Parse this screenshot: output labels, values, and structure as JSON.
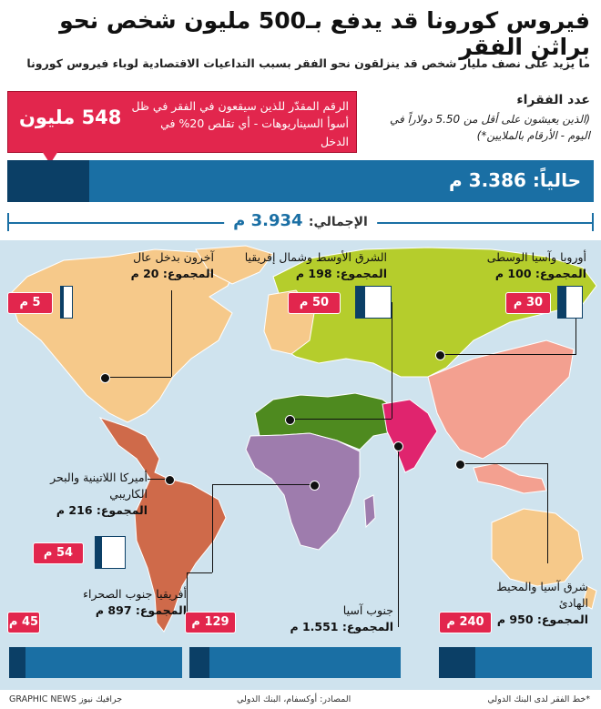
{
  "title": "فيروس كورونا قد يدفع بـ500 مليون شخص نحو براثن الفقر",
  "subtitle": "ما يزيد على نصف مليار شخص قد ينزلقون نحو الفقر بسبب التداعيات الاقتصادية لوباء فيروس كورونا",
  "callout": {
    "value": "548 مليون",
    "text": "الرقم المقدّر للذين سيقعون في الفقر في ظل أسوأ السيناريوهات - أي تقلص 20% في الدخل"
  },
  "poor": {
    "title": "عدد الفقراء",
    "note": "(الذين يعيشون على أقل من 5.50 دولاراً في اليوم - الأرقام بالملايين*)"
  },
  "current_label": "حالياً: 3.386 م",
  "total_prefix": "الإجمالي:",
  "total_value": "3.934 م",
  "regions": {
    "europe": {
      "name": "أوروبا وآسيا الوسطى",
      "total": "المجموع: 100 م",
      "added": "30 م"
    },
    "mena": {
      "name": "الشرق الأوسط وشمال إفريقيا",
      "total": "المجموع: 198 م",
      "added": "50 م"
    },
    "high_income": {
      "name": "آخرون بدخل عال",
      "total": "المجموع: 20 م",
      "added": "5 م"
    },
    "latam": {
      "name": "أميركا اللاتينية والبحر الكاريبي",
      "total": "المجموع: 216 م",
      "added": "54 م"
    },
    "ssa": {
      "name": "أفريقيا جنوب الصحراء",
      "total": "المجموع: 897 م",
      "added": "45 م"
    },
    "south_asia": {
      "name": "جنوب آسيا",
      "total": "المجموع: 1.551 م",
      "added": "129 م"
    },
    "east_asia": {
      "name": "شرق آسيا والمحيط الهادئ",
      "total": "المجموع: 950 م",
      "added": "240 م"
    }
  },
  "footer": {
    "credit": "GRAPHIC NEWS جرافيك نيوز",
    "source": "المصادر: أوكسفام، البنك الدولي",
    "note": "*خط الفقر لدى البنك الدولي"
  },
  "colors": {
    "accent_red": "#e2264d",
    "bar_blue": "#1a6fa4",
    "bar_dark": "#0b3f66",
    "ocean": "#cfe3ee",
    "europe_central_asia": "#b5cd2c",
    "mena": "#4e8a1f",
    "high_income": "#f6c98a",
    "latin_america": "#cf6a4a",
    "sub_saharan_africa": "#9e7cad",
    "south_asia": "#e0246e",
    "east_asia_pacific": "#f3a090"
  },
  "chart_data": {
    "type": "bar",
    "title": "عدد الفقراء",
    "unit": "مليون",
    "totals": {
      "current": 3386,
      "added_worst_case": 548,
      "total": 3934
    },
    "categories": [
      "أوروبا وآسيا الوسطى",
      "الشرق الأوسط وشمال إفريقيا",
      "آخرون بدخل عال",
      "أميركا اللاتينية والبحر الكاريبي",
      "أفريقيا جنوب الصحراء",
      "جنوب آسيا",
      "شرق آسيا والمحيط الهادئ"
    ],
    "series": [
      {
        "name": "المجموع",
        "values": [
          100,
          198,
          20,
          216,
          897,
          1551,
          950
        ]
      },
      {
        "values": [
          30,
          50,
          5,
          54,
          45,
          129,
          240
        ]
      }
    ]
  }
}
